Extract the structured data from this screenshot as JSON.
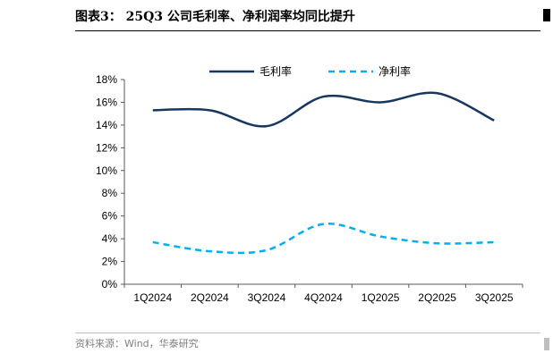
{
  "header": {
    "title": "图表3： 25Q3 公司毛利率、净利润率均同比提升"
  },
  "footer": {
    "source": "资料来源：Wind，华泰研究"
  },
  "colors": {
    "gross": "#17375e",
    "net": "#00b0f0",
    "axis": "#595959"
  },
  "chart_data": {
    "type": "line",
    "title": "",
    "xlabel": "",
    "ylabel": "",
    "categories": [
      "1Q2024",
      "2Q2024",
      "3Q2024",
      "4Q2024",
      "1Q2025",
      "2Q2025",
      "3Q2025"
    ],
    "y_ticks": [
      "0%",
      "2%",
      "4%",
      "6%",
      "8%",
      "10%",
      "12%",
      "14%",
      "16%",
      "18%"
    ],
    "ylim": [
      0,
      18
    ],
    "y_unit": "%",
    "grid": false,
    "legend_position": "top-center",
    "series": [
      {
        "name": "毛利率",
        "style": "solid",
        "values": [
          15.3,
          15.3,
          13.9,
          16.5,
          16.0,
          16.8,
          14.4
        ]
      },
      {
        "name": "净利率",
        "style": "dashed",
        "values": [
          3.7,
          2.9,
          3.0,
          5.3,
          4.2,
          3.6,
          3.7
        ]
      }
    ]
  }
}
